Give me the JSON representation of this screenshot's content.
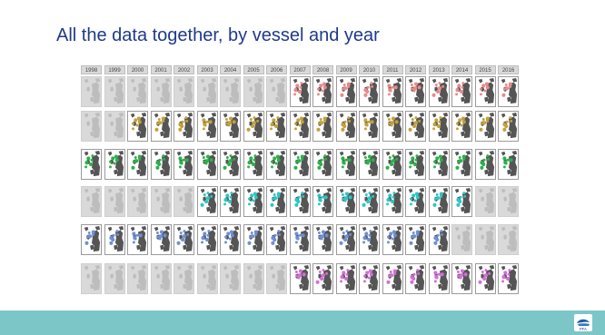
{
  "slide": {
    "title": "All the data together, by vessel and year",
    "colors": {
      "accent_title": "#1f3a8a",
      "footer_band": "#7cc6c8",
      "grey_missing": "#d9d9d9"
    }
  },
  "years": [
    "1998",
    "1999",
    "2000",
    "2001",
    "2002",
    "2003",
    "2004",
    "2005",
    "2006",
    "2007",
    "2008",
    "2009",
    "2010",
    "2011",
    "2012",
    "2013",
    "2014",
    "2015",
    "2016"
  ],
  "vessels": [
    {
      "color": "#e88a8a",
      "active": [
        0,
        0,
        0,
        0,
        0,
        0,
        0,
        0,
        0,
        1,
        1,
        1,
        1,
        1,
        1,
        1,
        1,
        1,
        1
      ]
    },
    {
      "color": "#c2a23a",
      "active": [
        0,
        0,
        1,
        1,
        1,
        1,
        1,
        1,
        1,
        1,
        1,
        1,
        1,
        1,
        1,
        1,
        1,
        1,
        1
      ]
    },
    {
      "color": "#2ab24a",
      "active": [
        1,
        1,
        1,
        1,
        1,
        1,
        1,
        1,
        1,
        1,
        1,
        1,
        1,
        1,
        1,
        1,
        1,
        1,
        1
      ]
    },
    {
      "color": "#2cc6c6",
      "active": [
        0,
        0,
        0,
        0,
        0,
        1,
        1,
        1,
        1,
        1,
        1,
        1,
        1,
        1,
        1,
        1,
        1,
        0,
        0
      ]
    },
    {
      "color": "#6f8fd6",
      "active": [
        1,
        1,
        1,
        1,
        1,
        1,
        1,
        1,
        1,
        1,
        1,
        1,
        1,
        1,
        1,
        1,
        0,
        0,
        0
      ]
    },
    {
      "color": "#d36fd6",
      "active": [
        0,
        0,
        0,
        0,
        0,
        0,
        0,
        0,
        0,
        1,
        1,
        1,
        1,
        1,
        1,
        1,
        1,
        1,
        1
      ]
    }
  ],
  "logo": {
    "icon": "pfa-logo",
    "text": "PFA"
  }
}
